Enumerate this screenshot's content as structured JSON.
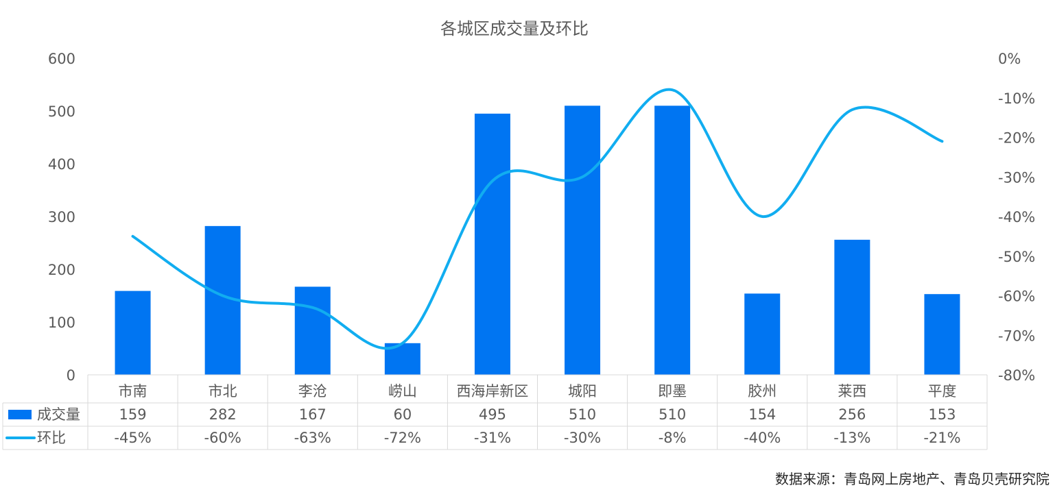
{
  "chart_data": {
    "type": "bar",
    "title": "各城区成交量及环比",
    "categories": [
      "市南",
      "市北",
      "李沧",
      "崂山",
      "西海岸新区",
      "城阳",
      "即墨",
      "胶州",
      "莱西",
      "平度"
    ],
    "series": [
      {
        "name": "成交量",
        "type": "bar",
        "axis": "left",
        "color": "#0075F2",
        "values": [
          159,
          282,
          167,
          60,
          495,
          510,
          510,
          154,
          256,
          153
        ],
        "labels": [
          "159",
          "282",
          "167",
          "60",
          "495",
          "510",
          "510",
          "154",
          "256",
          "153"
        ]
      },
      {
        "name": "环比",
        "type": "line",
        "axis": "right",
        "color": "#11ADF0",
        "values": [
          -45,
          -60,
          -63,
          -72,
          -31,
          -30,
          -8,
          -40,
          -13,
          -21
        ],
        "labels": [
          "-45%",
          "-60%",
          "-63%",
          "-72%",
          "-31%",
          "-30%",
          "-8%",
          "-40%",
          "-13%",
          "-21%"
        ]
      }
    ],
    "y_left": {
      "min": 0,
      "max": 600,
      "ticks": [
        "0",
        "100",
        "200",
        "300",
        "400",
        "500",
        "600"
      ]
    },
    "y_right": {
      "min": -80,
      "max": 0,
      "ticks": [
        "-80%",
        "-70%",
        "-60%",
        "-50%",
        "-40%",
        "-30%",
        "-20%",
        "-10%",
        "0%"
      ]
    },
    "legend": "data-table",
    "grid": false
  },
  "source": "数据来源：青岛网上房地产、青岛贝壳研究院"
}
